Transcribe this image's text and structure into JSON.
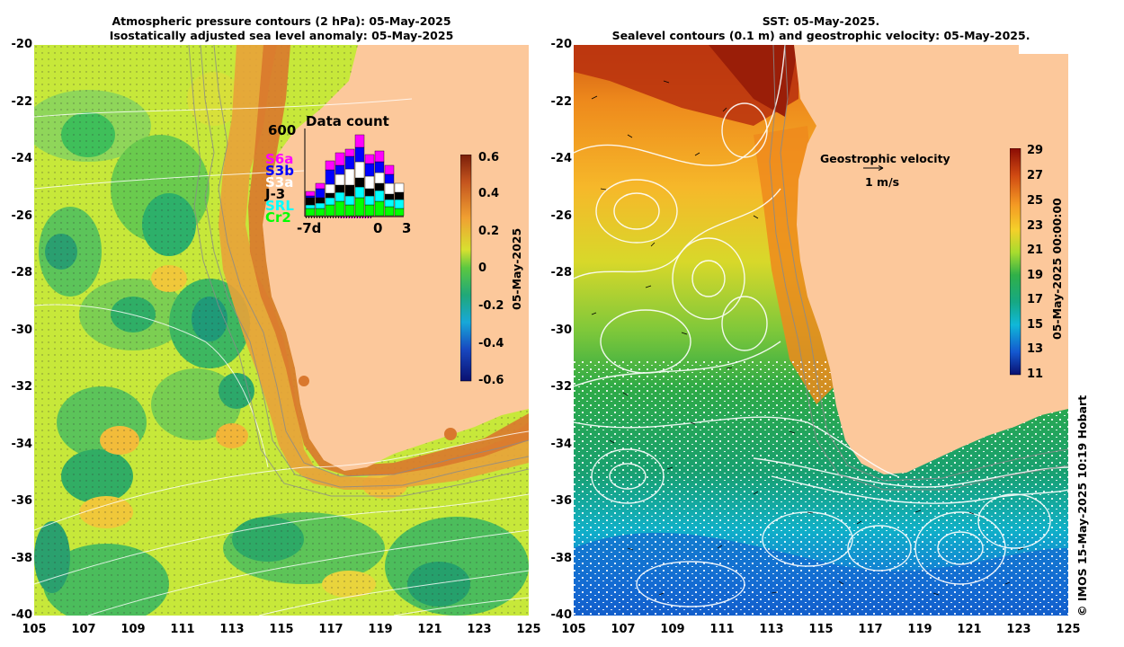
{
  "left_panel": {
    "title_line1": "Atmospheric pressure contours (2 hPa): 05-May-2025",
    "title_line2": "Isostatically adjusted sea level anomaly: 05-May-2025",
    "colorbar": {
      "ticks": [
        "0.6",
        "0.4",
        "0.2",
        "0",
        "-0.2",
        "-0.4",
        "-0.6"
      ],
      "label": "05-May-2025",
      "range": [
        -0.6,
        0.6
      ]
    },
    "inset": {
      "title": "Data count",
      "ymax": "600",
      "x_labels": [
        "-7d",
        "0",
        "3"
      ],
      "satellites": [
        {
          "name": "S6a",
          "color": "#ff00ff"
        },
        {
          "name": "S3b",
          "color": "#0000ff"
        },
        {
          "name": "S3a",
          "color": "#ffffff"
        },
        {
          "name": "J-3",
          "color": "#000000"
        },
        {
          "name": "SRL",
          "color": "#00ffff"
        },
        {
          "name": "Cr2",
          "color": "#00ff00"
        }
      ]
    }
  },
  "right_panel": {
    "title_line1": "SST: 05-May-2025.",
    "title_line2": "Sealevel contours (0.1 m) and geostrophic velocity: 05-May-2025.",
    "colorbar": {
      "ticks": [
        "29",
        "27",
        "25",
        "23",
        "21",
        "19",
        "17",
        "15",
        "13",
        "11"
      ],
      "label": "05-May-2025 00:00:00",
      "range": [
        11,
        29
      ]
    },
    "velocity_legend": {
      "title": "Geostrophic velocity",
      "scale": "1 m/s"
    }
  },
  "axes": {
    "y_labels": [
      "-20",
      "-22",
      "-24",
      "-26",
      "-28",
      "-30",
      "-32",
      "-34",
      "-36",
      "-38",
      "-40"
    ],
    "x_labels": [
      "105",
      "107",
      "109",
      "111",
      "113",
      "115",
      "117",
      "119",
      "121",
      "123",
      "125"
    ]
  },
  "credit": "© IMOS 15-May-2025 10:19 Hobart"
}
